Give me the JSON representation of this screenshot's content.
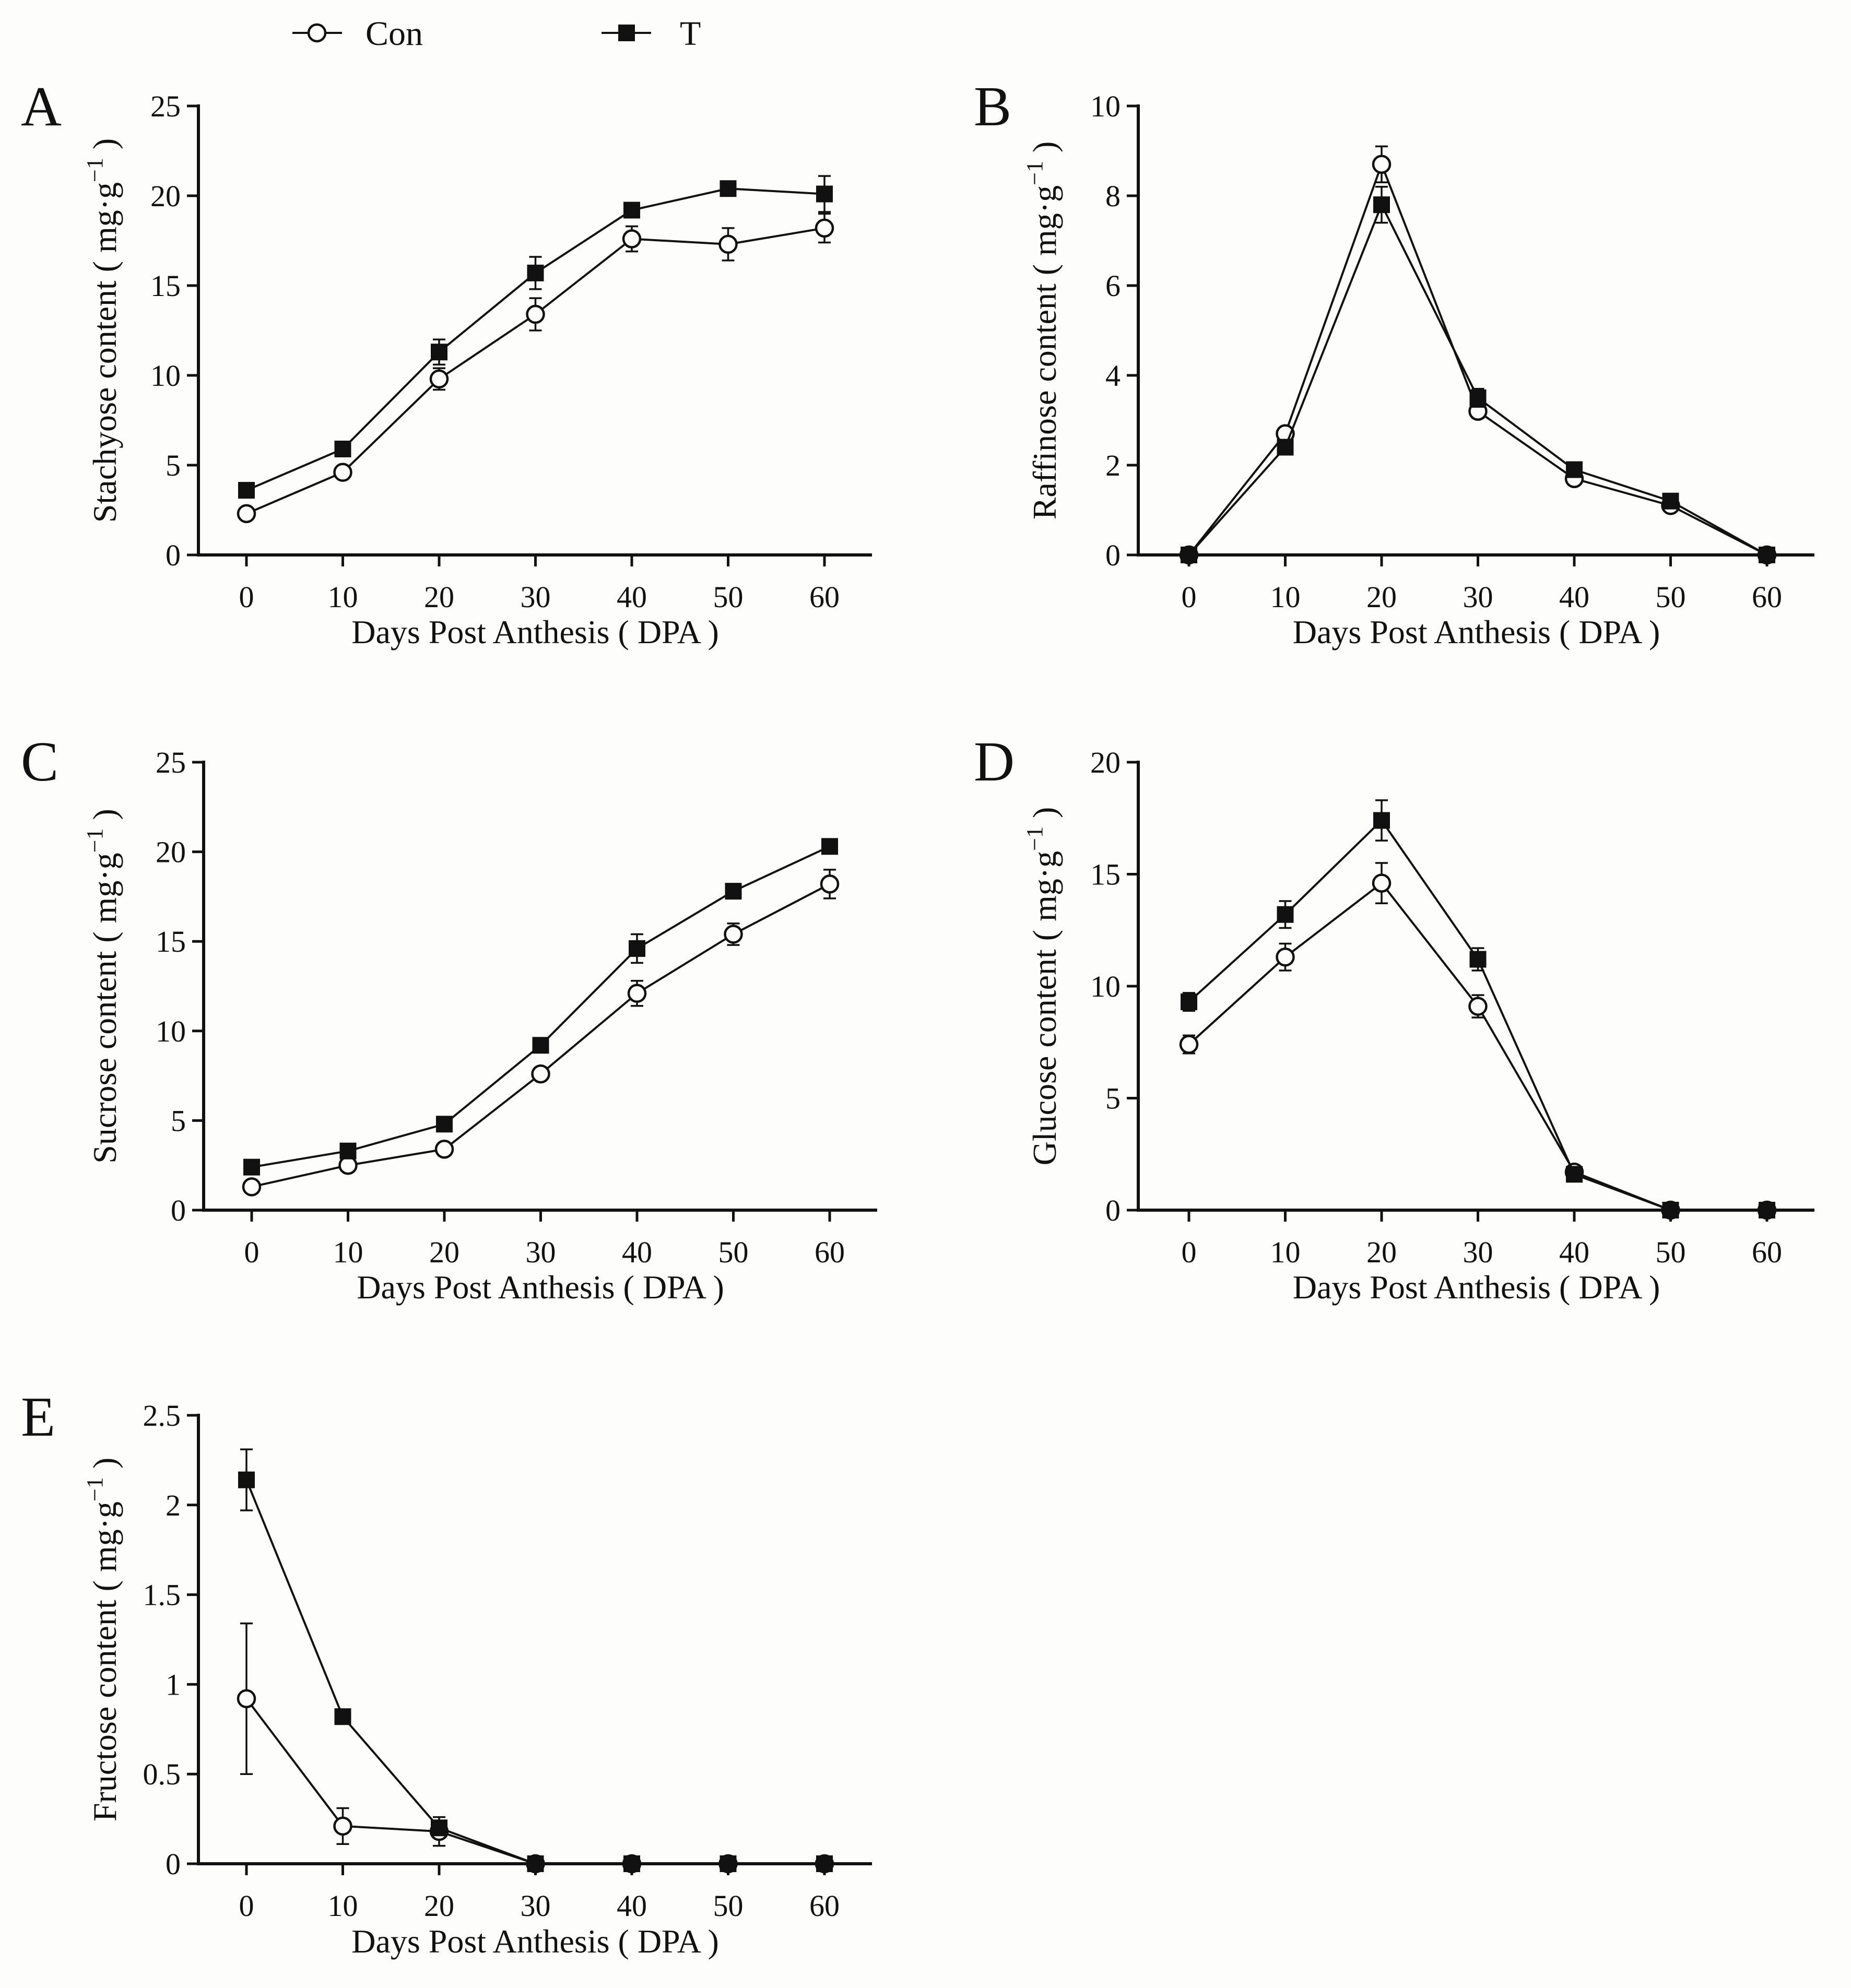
{
  "legend": {
    "series": [
      {
        "key": "con",
        "label": "Con",
        "marker": "open-circle"
      },
      {
        "key": "t",
        "label": "T",
        "marker": "filled-square"
      }
    ]
  },
  "chart_data": [
    {
      "panel": "A",
      "type": "line",
      "title": "",
      "xlabel": "Days Post Anthesis ( DPA )",
      "ylabel_main": "Stachyose content ( mg·g",
      "ylabel_sup": "−1",
      "ylabel_end": " )",
      "x": [
        0,
        10,
        20,
        30,
        40,
        50,
        60
      ],
      "xticks": [
        "0",
        "10",
        "20",
        "30",
        "40",
        "50",
        "60"
      ],
      "ylim": [
        0,
        25
      ],
      "yticks": [
        {
          "v": 0,
          "label": "0"
        },
        {
          "v": 5,
          "label": "5"
        },
        {
          "v": 10,
          "label": "10"
        },
        {
          "v": 15,
          "label": "15"
        },
        {
          "v": 20,
          "label": "20"
        },
        {
          "v": 25,
          "label": "25"
        }
      ],
      "series": [
        {
          "name": "Con",
          "values": [
            2.3,
            4.6,
            9.8,
            13.4,
            17.6,
            17.3,
            18.2
          ],
          "errors": [
            0.2,
            0.2,
            0.6,
            0.9,
            0.7,
            0.9,
            0.8
          ]
        },
        {
          "name": "T",
          "values": [
            3.6,
            5.9,
            11.3,
            15.7,
            19.2,
            20.4,
            20.1
          ],
          "errors": [
            0.2,
            0.2,
            0.7,
            0.9,
            0.2,
            0.2,
            1.0
          ]
        }
      ]
    },
    {
      "panel": "B",
      "type": "line",
      "title": "",
      "xlabel": "Days Post Anthesis ( DPA )",
      "ylabel_main": "Raffinose content ( mg·g",
      "ylabel_sup": "−1",
      "ylabel_end": " )",
      "x": [
        0,
        10,
        20,
        30,
        40,
        50,
        60
      ],
      "xticks": [
        "0",
        "10",
        "20",
        "30",
        "40",
        "50",
        "60"
      ],
      "ylim": [
        0,
        10
      ],
      "yticks": [
        {
          "v": 0,
          "label": "0"
        },
        {
          "v": 2,
          "label": "2"
        },
        {
          "v": 4,
          "label": "4"
        },
        {
          "v": 6,
          "label": "6"
        },
        {
          "v": 8,
          "label": "8"
        },
        {
          "v": 10,
          "label": "10"
        }
      ],
      "series": [
        {
          "name": "Con",
          "values": [
            0.0,
            2.7,
            8.7,
            3.2,
            1.7,
            1.1,
            0.0
          ],
          "errors": [
            0.05,
            0.1,
            0.4,
            0.15,
            0.08,
            0.08,
            0.05
          ]
        },
        {
          "name": "T",
          "values": [
            0.0,
            2.4,
            7.8,
            3.5,
            1.9,
            1.2,
            0.0
          ],
          "errors": [
            0.05,
            0.1,
            0.4,
            0.2,
            0.08,
            0.08,
            0.05
          ]
        }
      ]
    },
    {
      "panel": "C",
      "type": "line",
      "title": "",
      "xlabel": "Days Post Anthesis ( DPA )",
      "ylabel_main": "Sucrose content ( mg·g",
      "ylabel_sup": "−1",
      "ylabel_end": " )",
      "x": [
        0,
        10,
        20,
        30,
        40,
        50,
        60
      ],
      "xticks": [
        "0",
        "10",
        "20",
        "30",
        "40",
        "50",
        "60"
      ],
      "ylim": [
        0,
        25
      ],
      "yticks": [
        {
          "v": 0,
          "label": "0"
        },
        {
          "v": 5,
          "label": "5"
        },
        {
          "v": 10,
          "label": "10"
        },
        {
          "v": 15,
          "label": "15"
        },
        {
          "v": 20,
          "label": "20"
        },
        {
          "v": 25,
          "label": "25"
        }
      ],
      "series": [
        {
          "name": "Con",
          "values": [
            1.3,
            2.5,
            3.4,
            7.6,
            12.1,
            15.4,
            18.2
          ],
          "errors": [
            0.15,
            0.15,
            0.15,
            0.2,
            0.7,
            0.6,
            0.8
          ]
        },
        {
          "name": "T",
          "values": [
            2.4,
            3.3,
            4.8,
            9.2,
            14.6,
            17.8,
            20.3
          ],
          "errors": [
            0.15,
            0.15,
            0.15,
            0.3,
            0.8,
            0.2,
            0.2
          ]
        }
      ]
    },
    {
      "panel": "D",
      "type": "line",
      "title": "",
      "xlabel": "Days Post Anthesis ( DPA )",
      "ylabel_main": "Glucose content ( mg·g",
      "ylabel_sup": "−1",
      "ylabel_end": " )",
      "x": [
        0,
        10,
        20,
        30,
        40,
        50,
        60
      ],
      "xticks": [
        "0",
        "10",
        "20",
        "30",
        "40",
        "50",
        "60"
      ],
      "ylim": [
        0,
        20
      ],
      "yticks": [
        {
          "v": 0,
          "label": "0"
        },
        {
          "v": 5,
          "label": "5"
        },
        {
          "v": 10,
          "label": "10"
        },
        {
          "v": 15,
          "label": "15"
        },
        {
          "v": 20,
          "label": "20"
        }
      ],
      "series": [
        {
          "name": "Con",
          "values": [
            7.4,
            11.3,
            14.6,
            9.1,
            1.7,
            0.0,
            0.0
          ],
          "errors": [
            0.4,
            0.6,
            0.9,
            0.5,
            0.1,
            0.3,
            0.3
          ]
        },
        {
          "name": "T",
          "values": [
            9.3,
            13.2,
            17.4,
            11.2,
            1.6,
            0.0,
            0.0
          ],
          "errors": [
            0.4,
            0.6,
            0.9,
            0.5,
            0.1,
            0.3,
            0.3
          ]
        }
      ]
    },
    {
      "panel": "E",
      "type": "line",
      "title": "",
      "xlabel": "Days Post Anthesis ( DPA )",
      "ylabel_main": "Fructose content ( mg·g",
      "ylabel_sup": "−1",
      "ylabel_end": " )",
      "x": [
        0,
        10,
        20,
        30,
        40,
        50,
        60
      ],
      "xticks": [
        "0",
        "10",
        "20",
        "30",
        "40",
        "50",
        "60"
      ],
      "ylim": [
        0,
        2.5
      ],
      "yticks": [
        {
          "v": 0,
          "label": "0"
        },
        {
          "v": 0.5,
          "label": "0.5"
        },
        {
          "v": 1,
          "label": "1"
        },
        {
          "v": 1.5,
          "label": "1.5"
        },
        {
          "v": 2,
          "label": "2"
        },
        {
          "v": 2.5,
          "label": "2.5"
        }
      ],
      "series": [
        {
          "name": "Con",
          "values": [
            0.92,
            0.21,
            0.18,
            0.0,
            0.0,
            0.0,
            0.0
          ],
          "errors": [
            0.42,
            0.1,
            0.08,
            0.03,
            0.03,
            0.03,
            0.03
          ]
        },
        {
          "name": "T",
          "values": [
            2.14,
            0.82,
            0.2,
            0.0,
            0.0,
            0.0,
            0.0
          ],
          "errors": [
            0.17,
            0.02,
            0.04,
            0.02,
            0.02,
            0.02,
            0.02
          ]
        }
      ]
    }
  ]
}
